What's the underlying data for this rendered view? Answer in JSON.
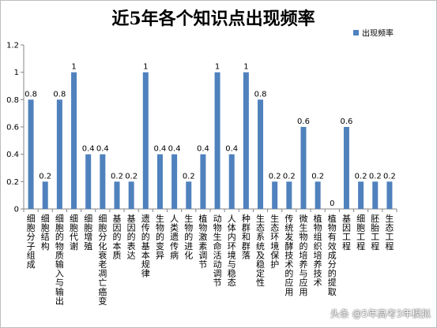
{
  "chart_data": {
    "type": "bar",
    "title": "近5年各个知识点出现频率",
    "series": [
      {
        "name": "出现频率",
        "color": "#4f81bd",
        "values": [
          0.8,
          0.2,
          0.8,
          1,
          0.4,
          0.4,
          0.2,
          0.2,
          1,
          0.4,
          0.4,
          0.2,
          0.4,
          1,
          0.4,
          1,
          0.8,
          0.2,
          0.2,
          0.6,
          0.2,
          0,
          0.6,
          0.2,
          0.2,
          0.2
        ]
      }
    ],
    "categories": [
      "细胞分子组成",
      "细胞结构",
      "细胞的物质输入与输出",
      "细胞代谢",
      "细胞增殖",
      "细胞分化衰老凋亡癌变",
      "基因的本质",
      "基因的表达",
      "遗传的基本规律",
      "生物的变异",
      "人类遗传病",
      "生物的进化",
      "植物激素调节",
      "动物生命活动调节",
      "人体内环境与稳态",
      "种群和群落",
      "生态系统及稳定性",
      "生态环境保护",
      "传统发酵技术的应用",
      "微生物的培养与应用",
      "植物组织培养技术",
      "植物有效成分的提取",
      "基因工程",
      "细胞工程",
      "胚胎工程",
      "生态工程"
    ],
    "data_labels": [
      "0.8",
      "0.2",
      "0.8",
      "1",
      "0.4",
      "0.4",
      "0.2",
      "0.2",
      "1",
      "0.4",
      "0.4",
      "0.2",
      "0.4",
      "1",
      "0.4",
      "1",
      "0.8",
      "0.2",
      "0.2",
      "0.6",
      "0.2",
      "0",
      "0.6",
      "0.2",
      "0.2",
      "0.2"
    ],
    "ylim": [
      0,
      1.2
    ],
    "yticks": [
      "0",
      "0.2",
      "0.4",
      "0.6",
      "0.8",
      "1",
      "1.2"
    ],
    "grid": false,
    "legend": "top-right",
    "xlabel": "",
    "ylabel": ""
  },
  "watermark": {
    "text": "头条 @5年高考3年模拟"
  }
}
